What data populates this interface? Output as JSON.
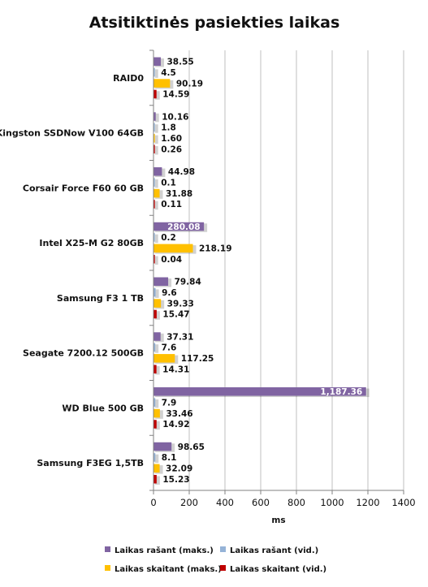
{
  "chart_data": {
    "type": "bar",
    "orientation": "horizontal",
    "title": "Atsitiktinės pasiekties laikas",
    "xlabel": "ms",
    "ylabel": "",
    "xlim": [
      0,
      1400
    ],
    "xticks": [
      "0",
      "200",
      "400",
      "600",
      "800",
      "1000",
      "1200",
      "1400"
    ],
    "grid": true,
    "legend_position": "bottom",
    "categories": [
      "RAID0",
      "Kingston SSDNow V100 64GB",
      "Corsair Force F60 60 GB",
      "Intel X25-M G2 80GB",
      "Samsung F3 1 TB",
      "Seagate 7200.12 500GB",
      "WD Blue 500 GB",
      "Samsung F3EG 1,5TB"
    ],
    "series": [
      {
        "name": "Laikas rašant (maks.)",
        "color": "#8064a2",
        "values": [
          38.55,
          10.16,
          44.98,
          280.08,
          79.84,
          37.31,
          1187.36,
          98.65
        ],
        "labels": [
          "38.55",
          "10.16",
          "44.98",
          "280.08",
          "79.84",
          "37.31",
          "1,187.36",
          "98.65"
        ]
      },
      {
        "name": "Laikas rašant (vid.)",
        "color": "#95b3d7",
        "values": [
          4.5,
          1.8,
          0.1,
          0.2,
          9.6,
          7.6,
          7.9,
          8.1
        ],
        "labels": [
          "4.5",
          "1.8",
          "0.1",
          "0.2",
          "9.6",
          "7.6",
          "7.9",
          "8.1"
        ]
      },
      {
        "name": "Laikas skaitant (maks.)",
        "color": "#ffc000",
        "values": [
          90.19,
          1.6,
          31.88,
          218.19,
          39.33,
          117.25,
          33.46,
          32.09
        ],
        "labels": [
          "90.19",
          "1.60",
          "31.88",
          "218.19",
          "39.33",
          "117.25",
          "33.46",
          "32.09"
        ]
      },
      {
        "name": "Laikas skaitant (vid.)",
        "color": "#c00000",
        "values": [
          14.59,
          0.26,
          0.11,
          0.04,
          15.47,
          14.31,
          14.92,
          15.23
        ],
        "labels": [
          "14.59",
          "0.26",
          "0.11",
          "0.04",
          "15.47",
          "14.31",
          "14.92",
          "15.23"
        ]
      }
    ]
  }
}
